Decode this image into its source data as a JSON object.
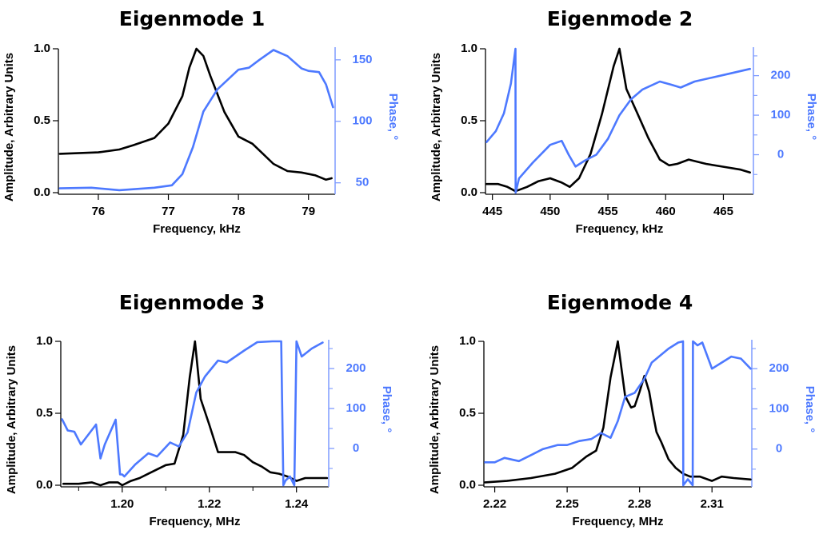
{
  "figure": {
    "colors": {
      "amplitude": "#000000",
      "phase": "#4d79ff",
      "phase_axis": "#7f9cff"
    }
  },
  "chart_data": [
    {
      "type": "line",
      "title": "Eigenmode 1",
      "xlabel": "Frequency, kHz",
      "ylabel": "Amplitude, Arbitrary Units",
      "y2label": "Phase, °",
      "xlim": [
        75.43,
        79.38
      ],
      "ylim": [
        0.0,
        1.0
      ],
      "y2lim": [
        42,
        159
      ],
      "xticks": [
        76,
        77,
        78,
        79
      ],
      "xtick_labels": [
        "76",
        "77",
        "78",
        "79"
      ],
      "yticks": [
        0.0,
        0.5,
        1.0
      ],
      "ytick_labels": [
        "0.0",
        "0.5",
        "1.0"
      ],
      "y2ticks": [
        50,
        100,
        150
      ],
      "y2tick_labels": [
        "50",
        "100",
        "150"
      ],
      "y2minor": [],
      "xminor": [],
      "grid": false,
      "series": [
        {
          "name": "Amplitude",
          "axis": "left",
          "x": [
            75.45,
            76.0,
            76.3,
            76.5,
            76.8,
            77.0,
            77.2,
            77.3,
            77.4,
            77.5,
            77.6,
            77.8,
            78.0,
            78.2,
            78.35,
            78.5,
            78.7,
            78.9,
            79.1,
            79.25,
            79.33
          ],
          "y": [
            0.27,
            0.28,
            0.3,
            0.33,
            0.38,
            0.48,
            0.67,
            0.87,
            1.0,
            0.95,
            0.81,
            0.56,
            0.39,
            0.34,
            0.27,
            0.2,
            0.15,
            0.14,
            0.12,
            0.09,
            0.1
          ]
        },
        {
          "name": "Phase",
          "axis": "right",
          "x": [
            75.45,
            75.9,
            76.3,
            76.8,
            77.05,
            77.2,
            77.35,
            77.5,
            77.7,
            78.0,
            78.15,
            78.3,
            78.5,
            78.7,
            78.9,
            79.0,
            79.15,
            79.25,
            79.35
          ],
          "y": [
            45.5,
            46,
            44,
            46,
            48,
            57,
            79,
            108,
            126,
            142,
            143.6,
            150,
            158,
            153,
            143,
            141,
            140,
            130,
            111.5
          ]
        }
      ]
    },
    {
      "type": "line",
      "title": "Eigenmode 2",
      "xlabel": "Frequency, kHz",
      "ylabel": "Amplitude, Arbitrary Units",
      "y2label": "Phase, °",
      "xlim": [
        444.4,
        467.6
      ],
      "ylim": [
        0.0,
        1.0
      ],
      "y2lim": [
        -96,
        268
      ],
      "xticks": [
        445,
        450,
        455,
        460,
        465
      ],
      "xtick_labels": [
        "445",
        "450",
        "455",
        "460",
        "465"
      ],
      "yticks": [
        0.0,
        0.5,
        1.0
      ],
      "ytick_labels": [
        "0.0",
        "0.5",
        "1.0"
      ],
      "y2ticks": [
        0,
        100,
        200
      ],
      "y2tick_labels": [
        "0",
        "100",
        "200"
      ],
      "y2minor": [
        -50,
        50,
        150,
        250
      ],
      "xminor": [],
      "grid": false,
      "series": [
        {
          "name": "Amplitude",
          "axis": "left",
          "x": [
            444.5,
            445.5,
            446.3,
            447.0,
            448.0,
            449.0,
            450.0,
            451.0,
            451.7,
            452.5,
            453.5,
            454.5,
            455.5,
            456.0,
            456.6,
            457.5,
            458.5,
            459.5,
            460.3,
            461.0,
            462.0,
            463.5,
            465.0,
            466.5,
            467.3
          ],
          "y": [
            0.06,
            0.06,
            0.04,
            0.01,
            0.04,
            0.08,
            0.1,
            0.07,
            0.04,
            0.1,
            0.27,
            0.55,
            0.88,
            1.0,
            0.72,
            0.56,
            0.38,
            0.23,
            0.19,
            0.2,
            0.23,
            0.2,
            0.18,
            0.16,
            0.14
          ]
        },
        {
          "name": "Phase",
          "axis": "right",
          "x": [
            444.5,
            445.3,
            446.0,
            446.6,
            447.0,
            447.01,
            447.3,
            448.5,
            450.0,
            451.0,
            451.6,
            452.2,
            453.0,
            454.0,
            455.0,
            456.0,
            457.0,
            458.0,
            459.5,
            460.5,
            461.3,
            462.5,
            464.0,
            465.5,
            467.3
          ],
          "y": [
            32,
            60,
            105,
            180,
            268,
            -96,
            -60,
            -20,
            25,
            35,
            0,
            -30,
            -15,
            0,
            40,
            100,
            140,
            165,
            185,
            177,
            170,
            185,
            195,
            205,
            217
          ]
        }
      ]
    },
    {
      "type": "line",
      "title": "Eigenmode 3",
      "xlabel": "Frequency, MHz",
      "ylabel": "Amplitude, Arbitrary Units",
      "y2label": "Phase, °",
      "xlim": [
        1.1859,
        1.2474
      ],
      "ylim": [
        0.0,
        1.0
      ],
      "y2lim": [
        -92,
        268
      ],
      "xticks": [
        1.2,
        1.22,
        1.24
      ],
      "xtick_labels": [
        "1.20",
        "1.22",
        "1.24"
      ],
      "yticks": [
        0.0,
        0.5,
        1.0
      ],
      "ytick_labels": [
        "0.0",
        "0.5",
        "1.0"
      ],
      "y2ticks": [
        0,
        100,
        200
      ],
      "y2tick_labels": [
        "0",
        "100",
        "200"
      ],
      "y2minor": [
        -50,
        50,
        150,
        250
      ],
      "xminor": [
        1.19,
        1.21,
        1.23
      ],
      "grid": false,
      "series": [
        {
          "name": "Amplitude",
          "axis": "left",
          "x": [
            1.1865,
            1.19,
            1.193,
            1.195,
            1.197,
            1.199,
            1.2,
            1.202,
            1.204,
            1.206,
            1.208,
            1.21,
            1.212,
            1.214,
            1.2155,
            1.2167,
            1.218,
            1.22,
            1.222,
            1.224,
            1.226,
            1.228,
            1.23,
            1.232,
            1.234,
            1.236,
            1.238,
            1.24,
            1.242,
            1.244,
            1.247
          ],
          "y": [
            0.01,
            0.01,
            0.02,
            0.0,
            0.02,
            0.02,
            0.0,
            0.03,
            0.05,
            0.08,
            0.11,
            0.14,
            0.15,
            0.35,
            0.75,
            1.0,
            0.6,
            0.42,
            0.23,
            0.23,
            0.23,
            0.21,
            0.16,
            0.13,
            0.09,
            0.08,
            0.06,
            0.03,
            0.05,
            0.05,
            0.05
          ]
        },
        {
          "name": "Phase",
          "axis": "right",
          "x": [
            1.1862,
            1.1875,
            1.189,
            1.1905,
            1.194,
            1.195,
            1.196,
            1.1985,
            1.1995,
            1.2,
            1.2005,
            1.203,
            1.206,
            1.208,
            1.211,
            1.213,
            1.215,
            1.217,
            1.219,
            1.222,
            1.224,
            1.228,
            1.231,
            1.2345,
            1.2365,
            1.237,
            1.2375,
            1.2385,
            1.2395,
            1.24,
            1.2412,
            1.2435,
            1.246
          ],
          "y": [
            73,
            45,
            42,
            10,
            60,
            -25,
            10,
            72,
            -65,
            -65,
            -70,
            -40,
            -12,
            -20,
            15,
            5,
            40,
            140,
            180,
            220,
            215,
            245,
            266,
            268,
            268,
            -92,
            -80,
            -70,
            -92,
            268,
            230,
            250,
            265
          ]
        }
      ]
    },
    {
      "type": "line",
      "title": "Eigenmode 4",
      "xlabel": "Frequency, MHz",
      "ylabel": "Amplitude, Arbitrary Units",
      "y2label": "Phase, °",
      "xlim": [
        2.2155,
        2.3265
      ],
      "ylim": [
        0.0,
        1.0
      ],
      "y2lim": [
        -90,
        268
      ],
      "xticks": [
        2.22,
        2.25,
        2.28,
        2.31
      ],
      "xtick_labels": [
        "2.22",
        "2.25",
        "2.28",
        "2.31"
      ],
      "yticks": [
        0.0,
        0.5,
        1.0
      ],
      "ytick_labels": [
        "0.0",
        "0.5",
        "1.0"
      ],
      "y2ticks": [
        0,
        100,
        200
      ],
      "y2tick_labels": [
        "0",
        "100",
        "200"
      ],
      "y2minor": [
        -50,
        50,
        150,
        250
      ],
      "xminor": [],
      "grid": false,
      "series": [
        {
          "name": "Amplitude",
          "axis": "left",
          "x": [
            2.216,
            2.225,
            2.235,
            2.245,
            2.252,
            2.258,
            2.262,
            2.265,
            2.268,
            2.271,
            2.274,
            2.2765,
            2.278,
            2.28,
            2.282,
            2.284,
            2.2855,
            2.287,
            2.289,
            2.292,
            2.295,
            2.298,
            2.301,
            2.305,
            2.31,
            2.314,
            2.319,
            2.326
          ],
          "y": [
            0.02,
            0.03,
            0.05,
            0.08,
            0.12,
            0.2,
            0.24,
            0.4,
            0.75,
            1.0,
            0.62,
            0.54,
            0.55,
            0.65,
            0.76,
            0.65,
            0.5,
            0.37,
            0.3,
            0.18,
            0.12,
            0.08,
            0.06,
            0.06,
            0.03,
            0.06,
            0.05,
            0.04
          ]
        },
        {
          "name": "Phase",
          "axis": "right",
          "x": [
            2.216,
            2.22,
            2.224,
            2.23,
            2.235,
            2.24,
            2.246,
            2.25,
            2.255,
            2.26,
            2.264,
            2.268,
            2.271,
            2.274,
            2.278,
            2.282,
            2.285,
            2.288,
            2.292,
            2.296,
            2.298,
            2.2981,
            2.3,
            2.302,
            2.3021,
            2.304,
            2.306,
            2.31,
            2.314,
            2.318,
            2.322,
            2.326
          ],
          "y": [
            -33,
            -33,
            -22,
            -30,
            -15,
            0,
            10,
            10,
            20,
            25,
            40,
            28,
            70,
            130,
            140,
            175,
            215,
            230,
            250,
            265,
            268,
            -90,
            -75,
            -90,
            268,
            258,
            265,
            200,
            215,
            230,
            225,
            200
          ]
        }
      ]
    }
  ]
}
